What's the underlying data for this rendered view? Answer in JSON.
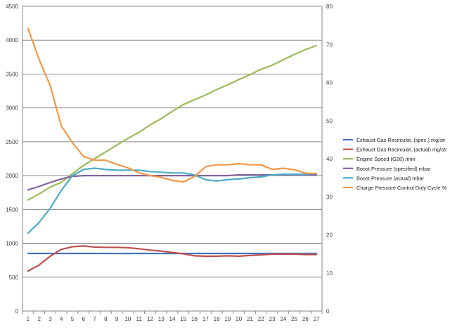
{
  "chart_data": {
    "type": "line",
    "x": [
      1,
      2,
      3,
      4,
      5,
      6,
      7,
      8,
      9,
      10,
      11,
      12,
      13,
      14,
      15,
      16,
      17,
      18,
      19,
      20,
      21,
      22,
      23,
      24,
      25,
      26,
      27
    ],
    "y_left": {
      "min": 0,
      "max": 4500,
      "ticks": [
        0,
        500,
        1000,
        1500,
        2000,
        2500,
        3000,
        3500,
        4000,
        4500
      ]
    },
    "y_right": {
      "min": 0,
      "max": 80,
      "ticks": [
        0,
        10,
        20,
        30,
        40,
        50,
        60,
        70,
        80
      ]
    },
    "grid": true,
    "legend_position": "right",
    "series": [
      {
        "name": "Exhaust Gas Recirculat. (spec.)  mg/str",
        "color": "#4472C4",
        "axis": "left",
        "values": [
          850,
          850,
          850,
          850,
          850,
          850,
          850,
          850,
          850,
          850,
          850,
          850,
          850,
          850,
          850,
          850,
          850,
          850,
          850,
          850,
          850,
          850,
          850,
          850,
          850,
          850,
          850
        ]
      },
      {
        "name": "Exhaust Gas Recirculat. (actual)  mg/str",
        "color": "#C0504D",
        "axis": "left",
        "values": [
          590,
          680,
          810,
          910,
          950,
          960,
          945,
          940,
          940,
          935,
          920,
          900,
          885,
          865,
          845,
          815,
          810,
          810,
          815,
          810,
          820,
          830,
          840,
          840,
          840,
          835,
          835
        ]
      },
      {
        "name": "Engine Speed (G28)  /min",
        "color": "#9BBB59",
        "axis": "left",
        "values": [
          1640,
          1730,
          1830,
          1900,
          2030,
          2150,
          2250,
          2350,
          2450,
          2550,
          2640,
          2750,
          2840,
          2950,
          3050,
          3120,
          3190,
          3270,
          3340,
          3420,
          3490,
          3570,
          3630,
          3710,
          3790,
          3860,
          3920
        ]
      },
      {
        "name": "Boost Pressure (specified)  mbar",
        "color": "#8064A2",
        "axis": "left",
        "values": [
          1790,
          1840,
          1900,
          1950,
          1990,
          2000,
          2000,
          2000,
          2000,
          2000,
          2000,
          2000,
          2000,
          2000,
          2000,
          2000,
          2000,
          2000,
          2000,
          2010,
          2010,
          2010,
          2010,
          2010,
          2010,
          2010,
          2010
        ]
      },
      {
        "name": "Boost Pressure (actual)  mbar",
        "color": "#4BACC6",
        "axis": "left",
        "values": [
          1150,
          1310,
          1520,
          1780,
          2000,
          2090,
          2110,
          2090,
          2080,
          2080,
          2080,
          2060,
          2050,
          2040,
          2040,
          2010,
          1940,
          1920,
          1940,
          1950,
          1970,
          1980,
          2010,
          2020,
          2020,
          2020,
          2030
        ]
      },
      {
        "name": "Charge Pressure Control Duty Cycle  %",
        "color": "#F79646",
        "axis": "right",
        "values": [
          74.2,
          66.0,
          59.2,
          48.6,
          44.2,
          40.6,
          39.6,
          39.6,
          38.5,
          37.6,
          36.3,
          35.6,
          35.1,
          34.3,
          33.9,
          35.3,
          37.9,
          38.4,
          38.4,
          38.7,
          38.4,
          38.4,
          37.2,
          37.5,
          37.1,
          36.2,
          36.1
        ]
      }
    ]
  }
}
